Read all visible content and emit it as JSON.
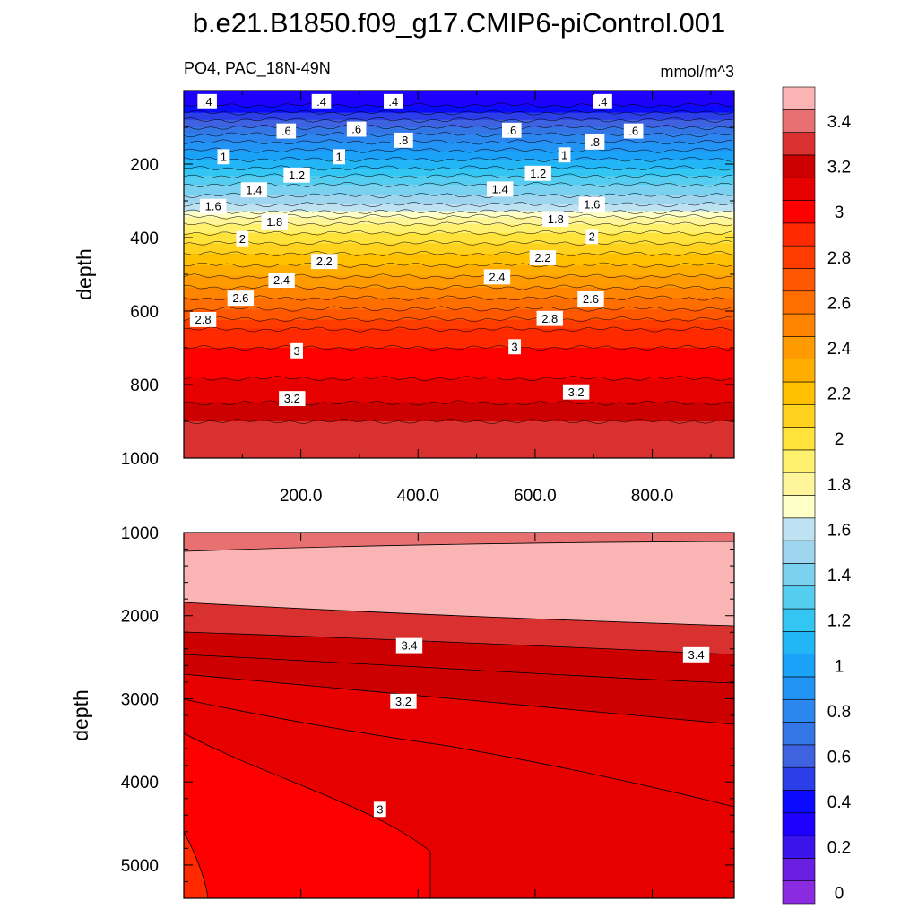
{
  "title": "b.e21.B1850.f09_g17.CMIP6-piControl.001",
  "chart_data": {
    "type": "contour",
    "variable_label": "PO4, PAC_18N-49N",
    "units": "mmol/m^3",
    "colorbar": {
      "levels": [
        0,
        0.1,
        0.2,
        0.3,
        0.4,
        0.5,
        0.6,
        0.7,
        0.8,
        0.9,
        1,
        1.1,
        1.2,
        1.3,
        1.4,
        1.5,
        1.6,
        1.7,
        1.8,
        1.9,
        2,
        2.1,
        2.2,
        2.3,
        2.4,
        2.5,
        2.6,
        2.7,
        2.8,
        2.9,
        3,
        3.1,
        3.2,
        3.3,
        3.4,
        3.5
      ],
      "colors": [
        "#8a2be2",
        "#6a1ee0",
        "#3a14ea",
        "#1e00ff",
        "#0a0aff",
        "#2c3ee8",
        "#3f62e0",
        "#3377e6",
        "#2b86ee",
        "#2294f5",
        "#1aa2f8",
        "#22b6f6",
        "#33c6f3",
        "#55cdf0",
        "#7ad1f0",
        "#9fd6ef",
        "#bfe2f2",
        "#ffffc8",
        "#fff59a",
        "#fff06e",
        "#ffe23a",
        "#ffd21e",
        "#ffc000",
        "#ffae00",
        "#ff9a00",
        "#ff8400",
        "#ff6e00",
        "#ff5800",
        "#ff3c00",
        "#ff2a00",
        "#ff0000",
        "#e60000",
        "#cc0000",
        "#d93030",
        "#e87070",
        "#fbb4b4"
      ],
      "tick_labels": [
        "0",
        "0.2",
        "0.4",
        "0.6",
        "0.8",
        "1",
        "1.2",
        "1.4",
        "1.6",
        "1.8",
        "2",
        "2.2",
        "2.4",
        "2.6",
        "2.8",
        "3",
        "3.2",
        "3.4"
      ]
    },
    "panels": [
      {
        "name": "upper",
        "x_range": [
          0,
          940
        ],
        "y_range": [
          0,
          1000
        ],
        "y_reversed": true,
        "ylabel": "depth",
        "x_tick_labels": [
          "200.0",
          "400.0",
          "600.0",
          "800.0"
        ],
        "y_tick_labels": [
          "200",
          "400",
          "600",
          "800",
          "1000"
        ],
        "profile": [
          {
            "depth": 0,
            "value": 0.3
          },
          {
            "depth": 30,
            "value": 0.35
          },
          {
            "depth": 50,
            "value": 0.45
          },
          {
            "depth": 80,
            "value": 0.6
          },
          {
            "depth": 150,
            "value": 0.95
          },
          {
            "depth": 200,
            "value": 1.15
          },
          {
            "depth": 250,
            "value": 1.38
          },
          {
            "depth": 300,
            "value": 1.55
          },
          {
            "depth": 330,
            "value": 1.7
          },
          {
            "depth": 350,
            "value": 1.85
          },
          {
            "depth": 400,
            "value": 2.05
          },
          {
            "depth": 450,
            "value": 2.22
          },
          {
            "depth": 500,
            "value": 2.38
          },
          {
            "depth": 550,
            "value": 2.55
          },
          {
            "depth": 600,
            "value": 2.72
          },
          {
            "depth": 650,
            "value": 2.9
          },
          {
            "depth": 700,
            "value": 3.0
          },
          {
            "depth": 800,
            "value": 3.12
          },
          {
            "depth": 850,
            "value": 3.2
          },
          {
            "depth": 900,
            "value": 3.3
          },
          {
            "depth": 1000,
            "value": 3.38
          }
        ],
        "contour_labels": [
          {
            "text": ".4",
            "x": 40,
            "depth": 30
          },
          {
            "text": ".4",
            "x": 235,
            "depth": 30
          },
          {
            "text": ".4",
            "x": 358,
            "depth": 30
          },
          {
            "text": ".4",
            "x": 715,
            "depth": 30
          },
          {
            "text": ".6",
            "x": 175,
            "depth": 110
          },
          {
            "text": ".6",
            "x": 295,
            "depth": 105
          },
          {
            "text": ".6",
            "x": 560,
            "depth": 108
          },
          {
            "text": ".6",
            "x": 768,
            "depth": 110
          },
          {
            "text": ".8",
            "x": 375,
            "depth": 135
          },
          {
            "text": ".8",
            "x": 702,
            "depth": 140
          },
          {
            "text": "1",
            "x": 68,
            "depth": 180
          },
          {
            "text": "1",
            "x": 265,
            "depth": 180
          },
          {
            "text": "1",
            "x": 650,
            "depth": 175
          },
          {
            "text": "1.2",
            "x": 193,
            "depth": 230
          },
          {
            "text": "1.2",
            "x": 605,
            "depth": 225
          },
          {
            "text": "1.4",
            "x": 120,
            "depth": 270
          },
          {
            "text": "1.4",
            "x": 540,
            "depth": 268
          },
          {
            "text": "1.6",
            "x": 50,
            "depth": 315
          },
          {
            "text": "1.6",
            "x": 697,
            "depth": 310
          },
          {
            "text": "1.8",
            "x": 155,
            "depth": 357
          },
          {
            "text": "1.8",
            "x": 635,
            "depth": 350
          },
          {
            "text": "2",
            "x": 100,
            "depth": 403
          },
          {
            "text": "2",
            "x": 697,
            "depth": 397
          },
          {
            "text": "2.2",
            "x": 240,
            "depth": 465
          },
          {
            "text": "2.2",
            "x": 613,
            "depth": 455
          },
          {
            "text": "2.4",
            "x": 167,
            "depth": 516
          },
          {
            "text": "2.4",
            "x": 535,
            "depth": 507
          },
          {
            "text": "2.6",
            "x": 97,
            "depth": 565
          },
          {
            "text": "2.6",
            "x": 695,
            "depth": 567
          },
          {
            "text": "2.8",
            "x": 33,
            "depth": 623
          },
          {
            "text": "2.8",
            "x": 625,
            "depth": 620
          },
          {
            "text": "3",
            "x": 193,
            "depth": 708
          },
          {
            "text": "3",
            "x": 565,
            "depth": 697
          },
          {
            "text": "3.2",
            "x": 185,
            "depth": 838
          },
          {
            "text": "3.2",
            "x": 670,
            "depth": 820
          }
        ]
      },
      {
        "name": "lower",
        "x_range": [
          0,
          940
        ],
        "y_range": [
          1000,
          5400
        ],
        "y_reversed": true,
        "ylabel": "depth",
        "x_tick_labels": [],
        "y_tick_labels": [
          "1000",
          "2000",
          "3000",
          "4000",
          "5000"
        ],
        "contour_labels": [
          {
            "text": "3.4",
            "x": 385,
            "depth": 2360
          },
          {
            "text": "3.4",
            "x": 875,
            "depth": 2470
          },
          {
            "text": "3.2",
            "x": 375,
            "depth": 3030
          },
          {
            "text": "3",
            "x": 335,
            "depth": 4330
          }
        ]
      }
    ]
  }
}
